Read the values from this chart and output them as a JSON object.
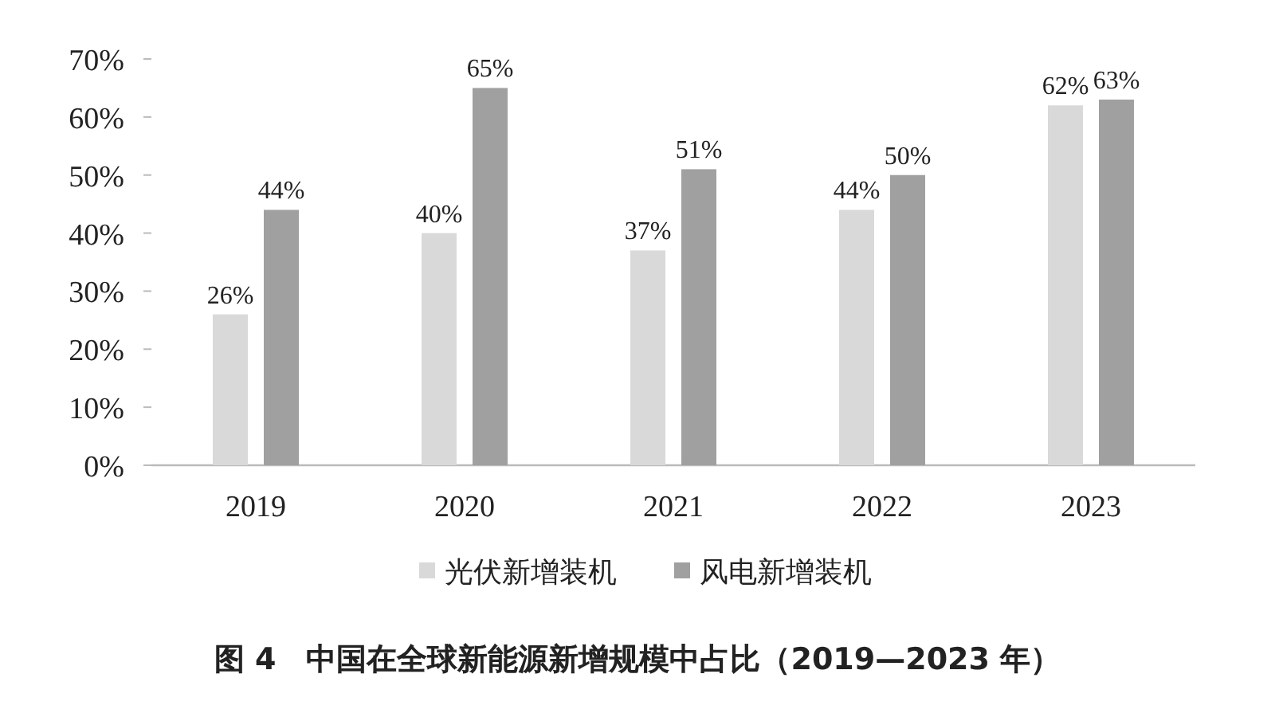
{
  "chart_data": {
    "type": "bar",
    "title": "图 4　中国在全球新能源新增规模中占比（2019—2023 年）",
    "categories": [
      "2019",
      "2020",
      "2021",
      "2022",
      "2023"
    ],
    "series": [
      {
        "name": "光伏新增装机",
        "color": "#d9d9d9",
        "values": [
          26,
          40,
          37,
          44,
          62
        ],
        "value_labels": [
          "26%",
          "40%",
          "37%",
          "44%",
          "62%"
        ]
      },
      {
        "name": "风电新增装机",
        "color": "#a0a0a0",
        "values": [
          44,
          65,
          51,
          50,
          63
        ],
        "value_labels": [
          "44%",
          "65%",
          "51%",
          "50%",
          "63%"
        ]
      }
    ],
    "ylim": [
      0,
      70
    ],
    "yticks": [
      {
        "value": 0,
        "label": "0%"
      },
      {
        "value": 10,
        "label": "10%"
      },
      {
        "value": 20,
        "label": "20%"
      },
      {
        "value": 30,
        "label": "30%"
      },
      {
        "value": 40,
        "label": "40%"
      },
      {
        "value": 50,
        "label": "50%"
      },
      {
        "value": 60,
        "label": "60%"
      },
      {
        "value": 70,
        "label": "70%"
      }
    ],
    "legend": "bottom"
  }
}
